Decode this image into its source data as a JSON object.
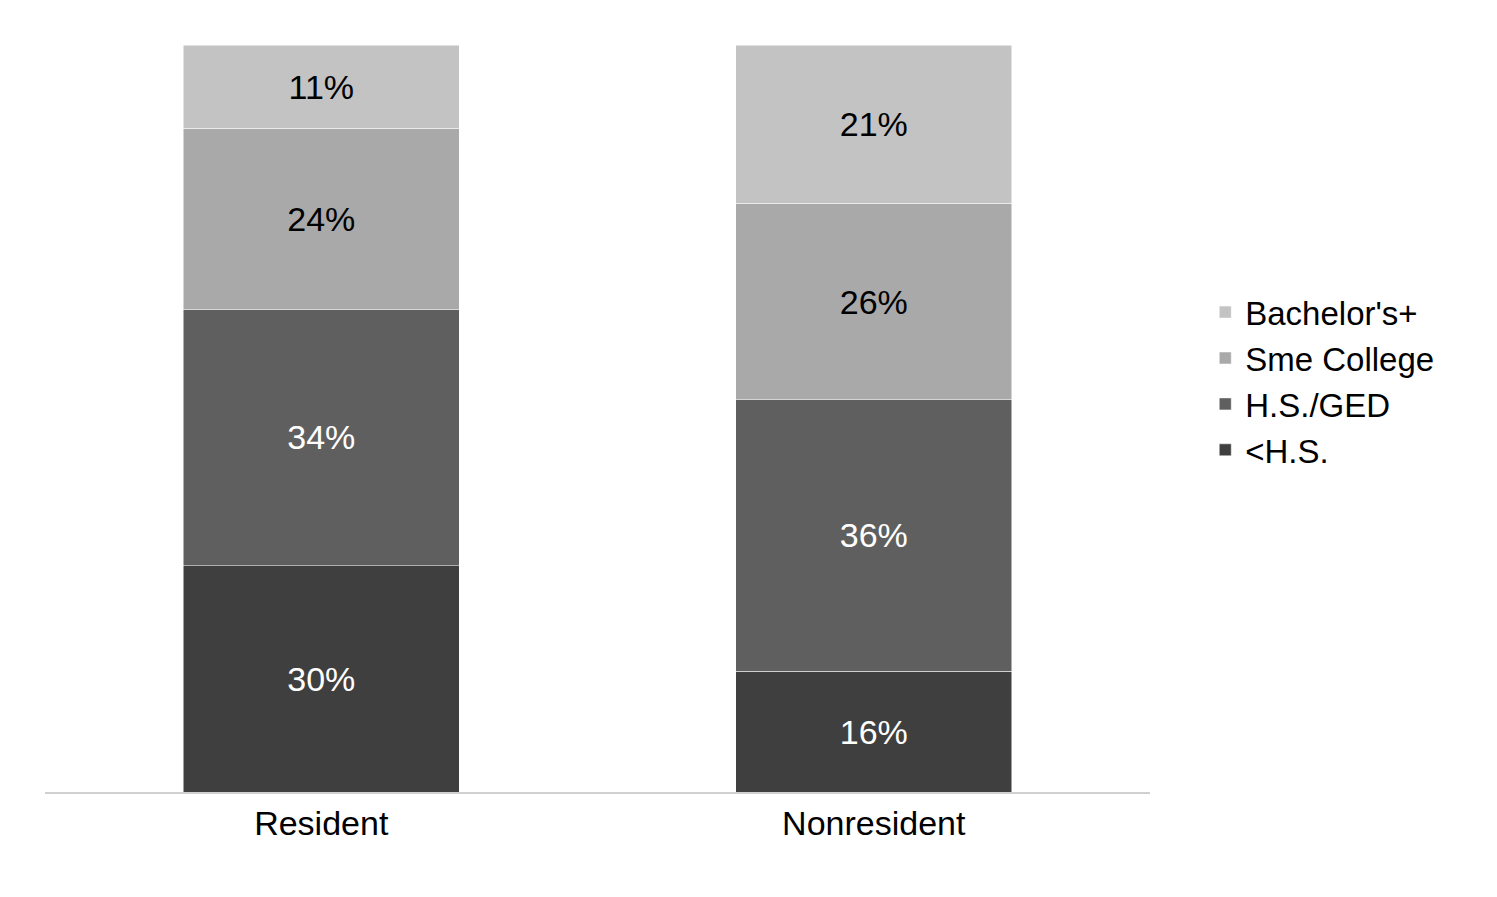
{
  "chart_data": {
    "type": "bar",
    "stacked": true,
    "data_labels": true,
    "tick_labels": "x",
    "legend": "right",
    "grid": false,
    "categories": [
      "Resident",
      "Nonresident"
    ],
    "ylim": [
      0,
      99
    ],
    "series": [
      {
        "name": "<H.S.",
        "color": "#3f3f3f",
        "values": [
          30,
          16
        ],
        "value_labels": [
          "30%",
          "16%"
        ]
      },
      {
        "name": "H.S./GED",
        "color": "#5f5f5f",
        "values": [
          34,
          36
        ],
        "value_labels": [
          "34%",
          "36%"
        ]
      },
      {
        "name": "Sme College",
        "color": "#a9a9a9",
        "values": [
          24,
          26
        ],
        "value_labels": [
          "24%",
          "26%"
        ]
      },
      {
        "name": "Bachelor's+",
        "color": "#c3c3c3",
        "values": [
          11,
          21
        ],
        "value_labels": [
          "11%",
          "21%"
        ]
      }
    ]
  }
}
